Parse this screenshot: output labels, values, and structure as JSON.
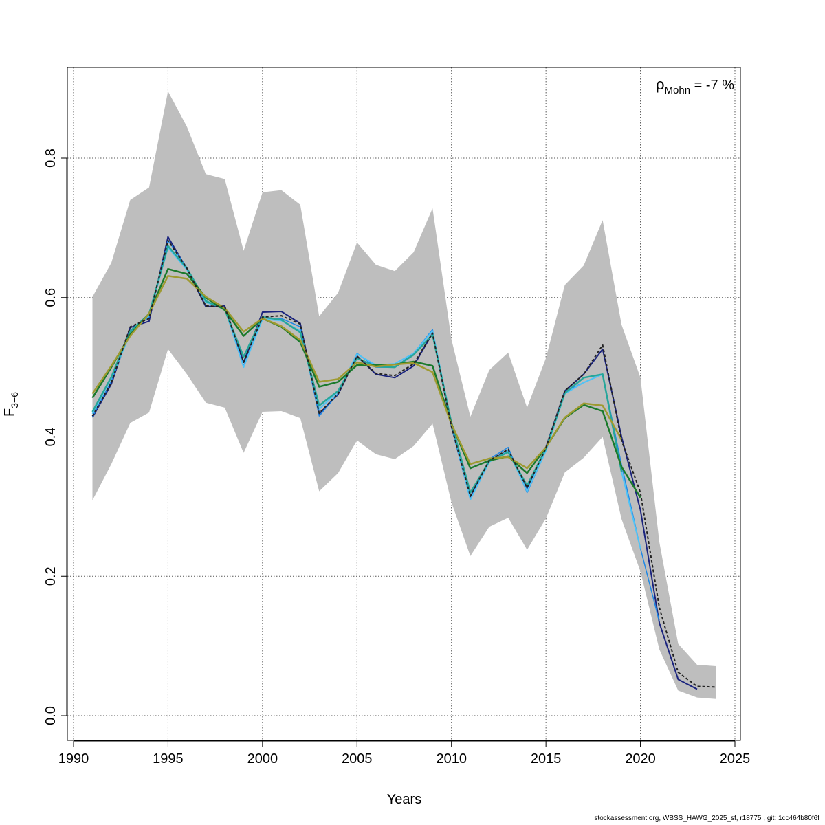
{
  "chart_data": {
    "type": "line",
    "xlabel": "Years",
    "ylabel_main": "F",
    "ylabel_sub": "3−6",
    "annotation": {
      "rho_symbol": "ρ",
      "rho_sub": "Mohn",
      "rho_value": " = -7 %"
    },
    "xlim": [
      1990,
      2025
    ],
    "ylim": [
      0,
      0.9
    ],
    "x_ticks": [
      1990,
      1995,
      2000,
      2005,
      2010,
      2015,
      2020,
      2025
    ],
    "y_ticks": [
      0.0,
      0.2,
      0.4,
      0.6,
      0.8
    ],
    "y_tick_labels": [
      "0.0",
      "0.2",
      "0.4",
      "0.6",
      "0.8"
    ],
    "grid": true,
    "confidence_band": {
      "color": "#bebebe",
      "x": [
        1991,
        1992,
        1993,
        1994,
        1995,
        1996,
        1997,
        1998,
        1999,
        2000,
        2001,
        2002,
        2003,
        2004,
        2005,
        2006,
        2007,
        2008,
        2009,
        2010,
        2011,
        2012,
        2013,
        2014,
        2015,
        2016,
        2017,
        2018,
        2019,
        2020,
        2021,
        2022,
        2023,
        2024
      ],
      "upper": [
        0.601,
        0.65,
        0.74,
        0.758,
        0.896,
        0.845,
        0.777,
        0.77,
        0.667,
        0.751,
        0.754,
        0.733,
        0.573,
        0.607,
        0.679,
        0.647,
        0.638,
        0.665,
        0.728,
        0.54,
        0.429,
        0.496,
        0.521,
        0.442,
        0.513,
        0.618,
        0.646,
        0.711,
        0.561,
        0.485,
        0.249,
        0.103,
        0.073,
        0.071
      ],
      "lower": [
        0.309,
        0.361,
        0.42,
        0.435,
        0.526,
        0.49,
        0.449,
        0.442,
        0.377,
        0.436,
        0.437,
        0.427,
        0.322,
        0.348,
        0.395,
        0.375,
        0.368,
        0.387,
        0.419,
        0.306,
        0.229,
        0.271,
        0.284,
        0.238,
        0.283,
        0.349,
        0.37,
        0.4,
        0.282,
        0.207,
        0.095,
        0.036,
        0.026,
        0.024
      ]
    },
    "series": [
      {
        "color": "#1a237e",
        "dash": "solid",
        "width": 2,
        "x": [
          1991,
          1992,
          1993,
          1994,
          1995,
          1996,
          1997,
          1998,
          1999,
          2000,
          2001,
          2002,
          2003,
          2004,
          2005,
          2006,
          2007,
          2008,
          2009,
          2010,
          2011,
          2012,
          2013,
          2014,
          2015,
          2016,
          2017,
          2018,
          2019,
          2020,
          2021,
          2022,
          2023
        ],
        "values": [
          0.428,
          0.476,
          0.557,
          0.566,
          0.687,
          0.641,
          0.587,
          0.588,
          0.507,
          0.579,
          0.58,
          0.563,
          0.433,
          0.461,
          0.516,
          0.49,
          0.485,
          0.502,
          0.549,
          0.415,
          0.314,
          0.366,
          0.38,
          0.325,
          0.385,
          0.466,
          0.49,
          0.526,
          0.4,
          0.295,
          0.133,
          0.052,
          0.038
        ]
      },
      {
        "color": "#1e88e5",
        "dash": "solid",
        "width": 1.5,
        "x": [
          1991,
          1992,
          1993,
          1994,
          1995,
          1996,
          1997,
          1998,
          1999,
          2000,
          2001,
          2002,
          2003,
          2004,
          2005,
          2006,
          2007,
          2008,
          2009,
          2010,
          2011,
          2012,
          2013,
          2014,
          2015,
          2016,
          2017,
          2018,
          2019,
          2020,
          2021
        ],
        "values": [
          0.429,
          0.48,
          0.551,
          0.572,
          0.682,
          0.643,
          0.593,
          0.585,
          0.502,
          0.571,
          0.57,
          0.558,
          0.43,
          0.462,
          0.52,
          0.5,
          0.5,
          0.52,
          0.554,
          0.414,
          0.31,
          0.368,
          0.385,
          0.32,
          0.38,
          0.465,
          0.478,
          0.49,
          0.36,
          0.24,
          0.135
        ]
      },
      {
        "color": "#4fc3f7",
        "dash": "solid",
        "width": 2,
        "x": [
          1991,
          1992,
          1993,
          1994,
          1995,
          1996,
          1997,
          1998,
          1999,
          2000,
          2001,
          2002,
          2003,
          2004,
          2005,
          2006,
          2007,
          2008,
          2009,
          2010,
          2011,
          2012,
          2013,
          2014,
          2015,
          2016,
          2017,
          2018,
          2019,
          2020
        ],
        "values": [
          0.433,
          0.485,
          0.548,
          0.574,
          0.672,
          0.64,
          0.593,
          0.585,
          0.5,
          0.569,
          0.567,
          0.552,
          0.44,
          0.465,
          0.519,
          0.503,
          0.505,
          0.52,
          0.552,
          0.42,
          0.31,
          0.364,
          0.38,
          0.322,
          0.38,
          0.462,
          0.478,
          0.49,
          0.35,
          0.24
        ]
      },
      {
        "color": "#26a69a",
        "dash": "solid",
        "width": 2.5,
        "x": [
          1991,
          1992,
          1993,
          1994,
          1995,
          1996,
          1997,
          1998,
          1999,
          2000,
          2001,
          2002,
          2003,
          2004,
          2005,
          2006,
          2007,
          2008,
          2009,
          2010,
          2011,
          2012,
          2013,
          2014,
          2015,
          2016,
          2017,
          2018,
          2019
        ],
        "values": [
          0.436,
          0.486,
          0.552,
          0.576,
          0.674,
          0.642,
          0.595,
          0.583,
          0.515,
          0.572,
          0.568,
          0.55,
          0.445,
          0.466,
          0.513,
          0.501,
          0.5,
          0.518,
          0.547,
          0.42,
          0.32,
          0.365,
          0.378,
          0.33,
          0.383,
          0.463,
          0.485,
          0.49,
          0.35
        ]
      },
      {
        "color": "#1b7a2c",
        "dash": "solid",
        "width": 2.5,
        "x": [
          1991,
          1992,
          1993,
          1994,
          1995,
          1996,
          1997,
          1998,
          1999,
          2000,
          2001,
          2002,
          2003,
          2004,
          2005,
          2006,
          2007,
          2008,
          2009,
          2010,
          2011,
          2012,
          2013,
          2014,
          2015,
          2016,
          2017,
          2018,
          2019,
          2020
        ],
        "values": [
          0.456,
          0.5,
          0.547,
          0.577,
          0.641,
          0.634,
          0.6,
          0.582,
          0.545,
          0.57,
          0.558,
          0.536,
          0.472,
          0.479,
          0.503,
          0.503,
          0.504,
          0.508,
          0.502,
          0.419,
          0.355,
          0.366,
          0.372,
          0.348,
          0.385,
          0.427,
          0.446,
          0.437,
          0.357,
          0.313
        ]
      },
      {
        "color": "#9e9a30",
        "dash": "solid",
        "width": 2.5,
        "x": [
          1991,
          1992,
          1993,
          1994,
          1995,
          1996,
          1997,
          1998,
          1999,
          2000,
          2001,
          2002,
          2003,
          2004,
          2005,
          2006,
          2007,
          2008,
          2009,
          2010,
          2011,
          2012,
          2013,
          2014,
          2015,
          2016,
          2017,
          2018,
          2019
        ],
        "values": [
          0.462,
          0.502,
          0.545,
          0.577,
          0.631,
          0.627,
          0.601,
          0.585,
          0.551,
          0.57,
          0.559,
          0.539,
          0.479,
          0.483,
          0.507,
          0.501,
          0.504,
          0.506,
          0.493,
          0.418,
          0.361,
          0.369,
          0.371,
          0.355,
          0.385,
          0.428,
          0.448,
          0.445,
          0.396
        ]
      },
      {
        "color": "#222222",
        "dash": "dashed",
        "width": 2,
        "x": [
          1991,
          1992,
          1993,
          1994,
          1995,
          1996,
          1997,
          1998,
          1999,
          2000,
          2001,
          2002,
          2003,
          2004,
          2005,
          2006,
          2007,
          2008,
          2009,
          2010,
          2011,
          2012,
          2013,
          2014,
          2015,
          2016,
          2017,
          2018,
          2019,
          2020,
          2021,
          2022,
          2023,
          2024
        ],
        "values": [
          0.43,
          0.478,
          0.558,
          0.57,
          0.682,
          0.642,
          0.588,
          0.587,
          0.507,
          0.572,
          0.574,
          0.562,
          0.434,
          0.462,
          0.516,
          0.491,
          0.488,
          0.505,
          0.549,
          0.415,
          0.315,
          0.366,
          0.382,
          0.327,
          0.384,
          0.466,
          0.49,
          0.532,
          0.395,
          0.32,
          0.155,
          0.062,
          0.042,
          0.041
        ]
      }
    ]
  },
  "footer": "stockassessment.org, WBSS_HAWG_2025_sf, r18775 , git: 1cc464b80f6f"
}
